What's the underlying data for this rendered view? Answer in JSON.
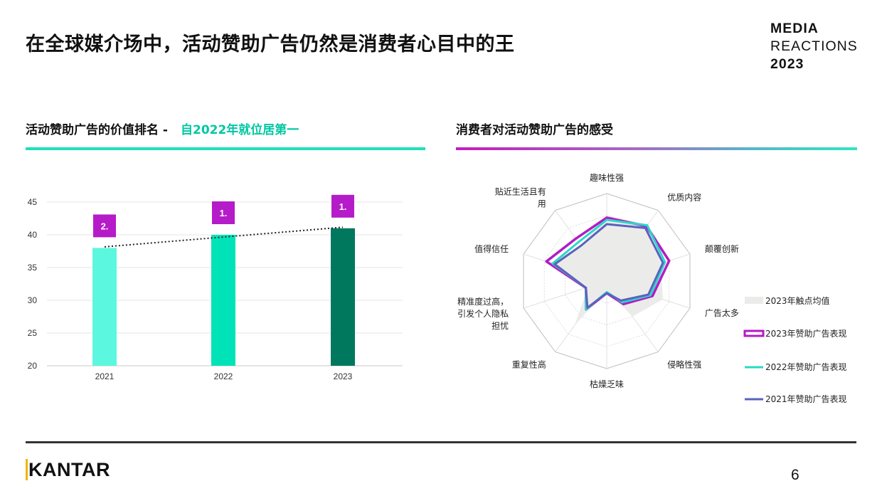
{
  "header": {
    "title": "在全球媒介场中，活动赞助广告仍然是消费者心目中的王",
    "brand_line1": "MEDIA",
    "brand_line2": "REACTIONS",
    "brand_line3": "2023"
  },
  "left_section": {
    "title": "活动赞助广告的价值排名 -",
    "accent": "自2022年就位居第一"
  },
  "right_section": {
    "title": "消费者对活动赞助广告的感受"
  },
  "footer": {
    "logo": "KANTAR",
    "page_number": "6"
  },
  "colors": {
    "accent_teal": "#1ee0b9",
    "accent_purple": "#c41bc0",
    "bar_2021": "#5cf7df",
    "bar_2022": "#00e3b8",
    "bar_2023": "#00785e",
    "badge_purple": "#b51bc8",
    "series_2023": "#b31cc4",
    "series_2022": "#2ad8c8",
    "series_2021": "#5b62bd",
    "average_fill": "#ebebe9"
  },
  "chart_data": [
    {
      "type": "bar",
      "categories": [
        "2021",
        "2022",
        "2023"
      ],
      "values": [
        38,
        40,
        41
      ],
      "rank_labels": [
        "2.",
        "1.",
        "1."
      ],
      "ylim": [
        20,
        45
      ],
      "yticks": [
        "20",
        "25",
        "30",
        "35",
        "40",
        "45"
      ],
      "trendline": "dotted linear",
      "grid": true,
      "xlabel": "",
      "ylabel": ""
    },
    {
      "type": "radar",
      "axes": [
        "趣味性强",
        "优质内容",
        "颠覆创新",
        "广告太多",
        "侵略性强",
        "枯燥乏味",
        "重复性高",
        "精准度过高，引发个人隐私担忧",
        "值得信任",
        "贴近生活且有用"
      ],
      "axis_label_lines": [
        [
          "趣味性强"
        ],
        [
          "优质内容"
        ],
        [
          "颠覆创新"
        ],
        [
          "广告太多"
        ],
        [
          "侵略性强"
        ],
        [
          "枯燥乏味"
        ],
        [
          "重复性高"
        ],
        [
          "精准度过高，",
          "引发个人隐私",
          "担忧"
        ],
        [
          "值得信任"
        ],
        [
          "贴近生活且有",
          "用"
        ]
      ],
      "scale_max": 4,
      "series": [
        {
          "name": "2023年触点均值",
          "values": [
            3.0,
            3.2,
            2.6,
            2.7,
            2.0,
            0.4,
            2.5,
            0.9,
            2.7,
            2.0
          ]
        },
        {
          "name": "2023年赞助广告表现",
          "values": [
            2.9,
            3.1,
            3.0,
            2.2,
            1.3,
            0.55,
            1.6,
            1.0,
            2.9,
            2.4
          ]
        },
        {
          "name": "2022年赞助广告表现",
          "values": [
            2.8,
            3.15,
            2.8,
            2.1,
            1.2,
            0.5,
            1.6,
            1.0,
            2.6,
            2.2
          ]
        },
        {
          "name": "2021年赞助广告表现",
          "values": [
            2.6,
            3.0,
            2.7,
            2.0,
            1.1,
            0.55,
            1.5,
            1.0,
            2.5,
            2.0
          ]
        }
      ],
      "legend_position": "right"
    }
  ]
}
